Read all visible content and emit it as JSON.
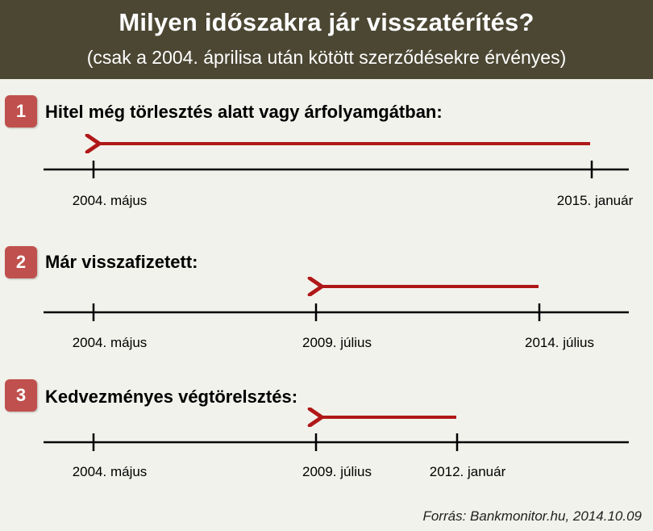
{
  "header": {
    "title": "Milyen időszakra jár visszatérítés?",
    "subtitle": "(csak a 2004. áprilisa után kötött szerződésekre  érvényes)"
  },
  "colors": {
    "header_bg": "#4b4733",
    "badge": "#c0504d",
    "arrow": "#b01818",
    "background": "#f2f2ec"
  },
  "sections": [
    {
      "number": "1",
      "heading": "Hitel még törlesztés alatt vagy árfolyamgátban:",
      "ticks": [
        "2004. május",
        "2015. január"
      ],
      "arrow": {
        "from": "2015. január",
        "to": "2004. május"
      }
    },
    {
      "number": "2",
      "heading": "Már visszafizetett:",
      "ticks": [
        "2004. május",
        "2009. július",
        "2014. július"
      ],
      "arrow": {
        "from": "2014. július",
        "to": "2009. július"
      }
    },
    {
      "number": "3",
      "heading": "Kedvezményes végtörelsztés:",
      "ticks": [
        "2004. május",
        "2009. július",
        "2012. január"
      ],
      "arrow": {
        "from": "2012. január",
        "to": "2009. július"
      }
    }
  ],
  "source": "Forrás:  Bankmonitor.hu,  2014.10.09"
}
